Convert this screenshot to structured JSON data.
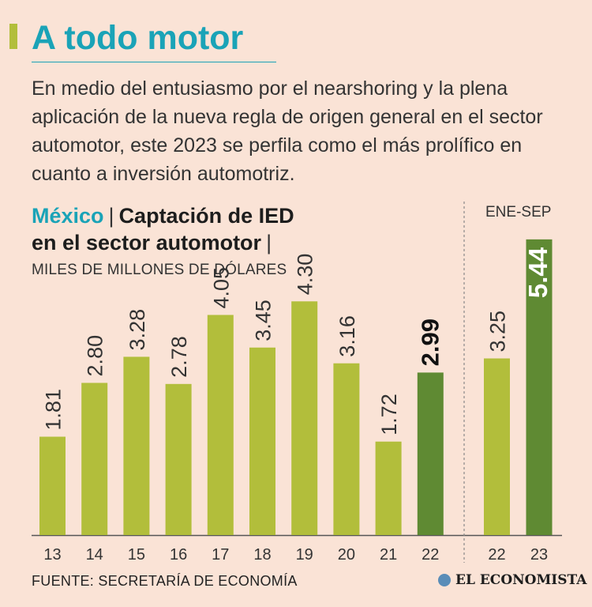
{
  "header": {
    "title": "A todo motor",
    "intro": "En medio del entusiasmo por el nearshoring y la plena aplicación de la nueva regla de origen general en el sector automotor, este 2023 se perfila como el más prolífico en cuanto a inversión automotriz."
  },
  "chart_heading": {
    "country": "México",
    "separator": "|",
    "line1": "Captación de IED",
    "line2": "en el sector automotor"
  },
  "chart_data": {
    "type": "bar",
    "title": "México | Captación de IED en el sector automotor",
    "ylabel": "MILES DE MILLONES DE DÓLARES",
    "ylim": [
      0,
      5.5
    ],
    "grid": false,
    "groups": [
      {
        "label": "",
        "categories": [
          "13",
          "14",
          "15",
          "16",
          "17",
          "18",
          "19",
          "20",
          "21",
          "22"
        ],
        "values": [
          1.81,
          2.8,
          3.28,
          2.78,
          4.05,
          3.45,
          4.3,
          3.16,
          1.72,
          2.99
        ],
        "labels": [
          "1.81",
          "2.80",
          "3.28",
          "2.78",
          "4.05",
          "3.45",
          "4.30",
          "3.16",
          "1.72",
          "2.99"
        ],
        "highlight": [
          false,
          false,
          false,
          false,
          false,
          false,
          false,
          false,
          false,
          true
        ]
      },
      {
        "label": "ENE-SEP",
        "categories": [
          "22",
          "23"
        ],
        "values": [
          3.25,
          5.44
        ],
        "labels": [
          "3.25",
          "5.44"
        ],
        "highlight": [
          false,
          true
        ]
      }
    ]
  },
  "footer": {
    "source": "FUENTE: SECRETARÍA DE ECONOMÍA",
    "brand": "EL ECONOMISTA"
  },
  "colors": {
    "background": "#fae3d6",
    "bar": "#b2be3b",
    "bar_highlight": "#5f8a33",
    "title": "#1aa3b7",
    "country": "#1aa3b7",
    "accent": "#b2be3b",
    "text": "#1d1d1d",
    "axis": "#555555"
  }
}
